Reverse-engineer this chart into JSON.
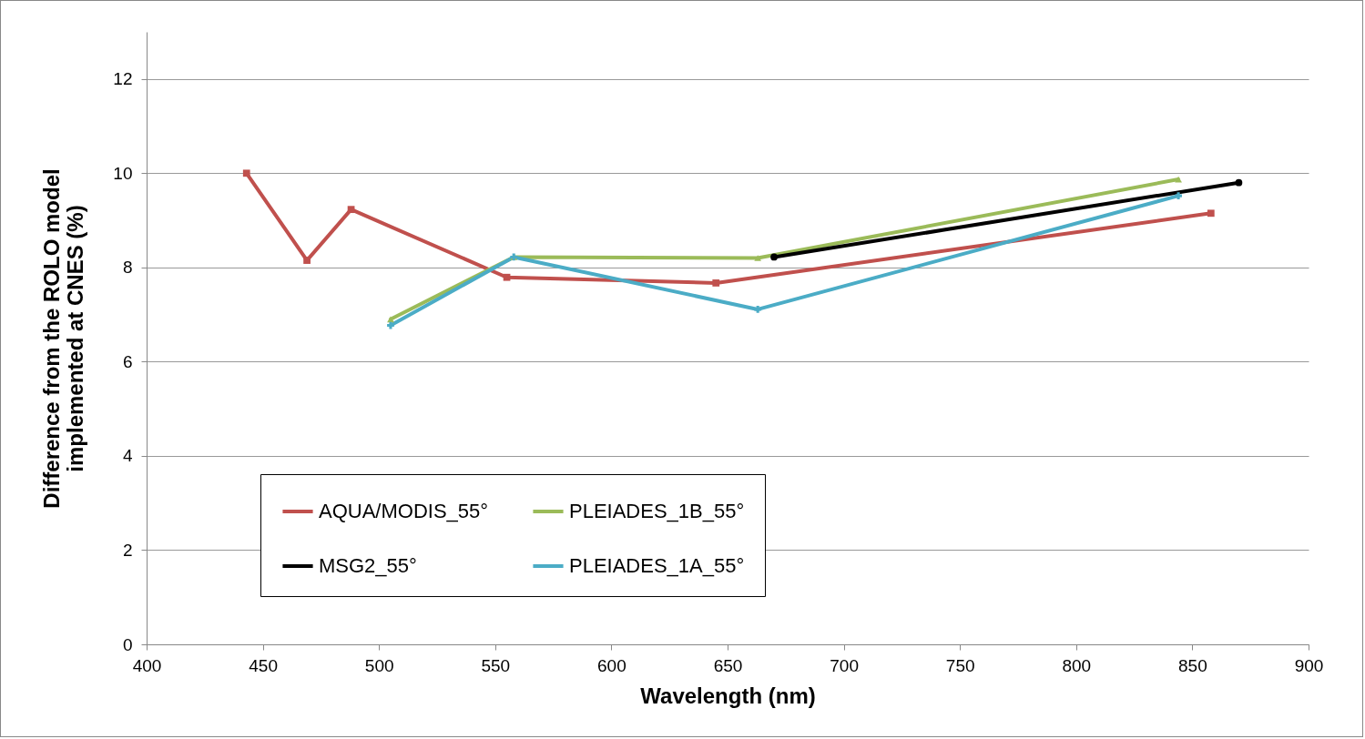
{
  "chart_data": {
    "type": "line",
    "xlabel": "Wavelength (nm)",
    "ylabel": "Difference from the ROLO model\nimplemented at CNES  (%)",
    "xlim": [
      400,
      900
    ],
    "xticks": [
      400,
      450,
      500,
      550,
      600,
      650,
      700,
      750,
      800,
      850,
      900
    ],
    "ylim": [
      0,
      13
    ],
    "yticks": [
      0,
      2,
      4,
      6,
      8,
      10,
      12
    ],
    "grid": "y",
    "legend": "bottom left",
    "line_style": "solid",
    "series": [
      {
        "name": "AQUA/MODIS_55°",
        "color": "#c0504d",
        "marker": "square",
        "x": [
          443,
          469,
          488,
          555,
          645,
          858
        ],
        "values": [
          10.0,
          8.15,
          9.23,
          7.79,
          7.67,
          9.15
        ]
      },
      {
        "name": "PLEIADES_1B_55°",
        "color": "#9bbb59",
        "marker": "triangle",
        "x": [
          505,
          558,
          663,
          844
        ],
        "values": [
          6.9,
          8.22,
          8.2,
          9.87
        ]
      },
      {
        "name": "MSG2_55°",
        "color": "#000000",
        "marker": "circle",
        "x": [
          670,
          870
        ],
        "values": [
          8.22,
          9.8
        ]
      },
      {
        "name": "PLEIADES_1A_55°",
        "color": "#4bacc6",
        "marker": "cross",
        "x": [
          505,
          558,
          663,
          844
        ],
        "values": [
          6.77,
          8.22,
          7.11,
          9.52
        ]
      }
    ]
  }
}
